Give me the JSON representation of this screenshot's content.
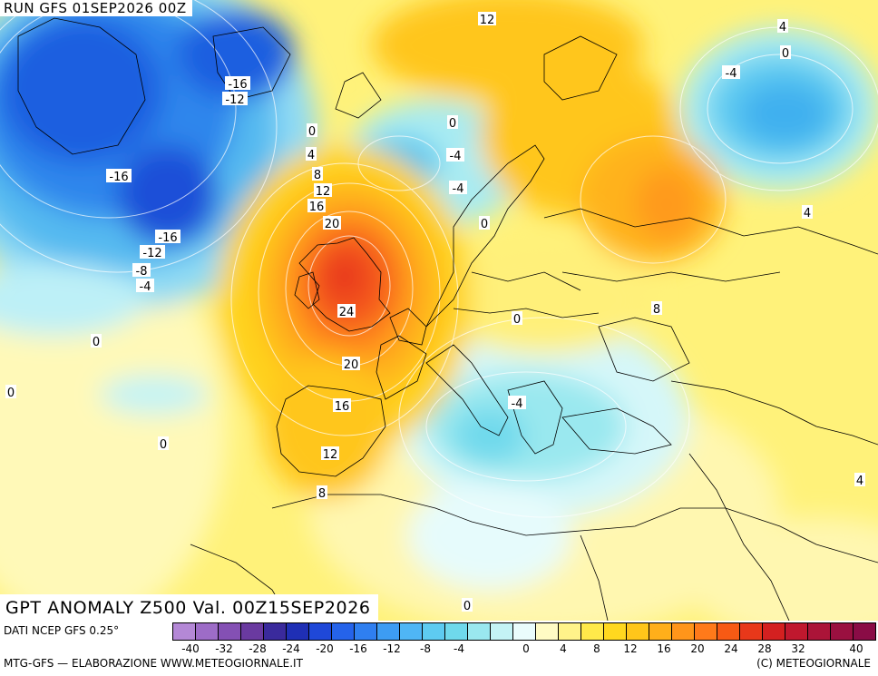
{
  "header": {
    "run": "RUN GFS 01SEP2026 00Z"
  },
  "title": "GPT ANOMALY Z500 Val. 00Z15SEP2026",
  "footer": {
    "source": "DATI NCEP GFS 0.25°",
    "credit_left": "MTG-GFS — ELABORAZIONE WWW.METEOGIORNALE.IT",
    "credit_right": "(C) METEOGIORNALE"
  },
  "legend": {
    "colors": [
      "#b488d6",
      "#9d6cc7",
      "#8450b4",
      "#6a3aa0",
      "#3a2a9c",
      "#1f2fb5",
      "#1f48d8",
      "#2563ea",
      "#2f7ff0",
      "#3d9cf3",
      "#4fb6f5",
      "#5ecbf1",
      "#6fd9ec",
      "#9ae8ef",
      "#c4f3f5",
      "#eafcfc",
      "#fffbc4",
      "#fff38a",
      "#ffe94a",
      "#ffd81f",
      "#ffc61a",
      "#ffaf1a",
      "#ff951a",
      "#ff7a1a",
      "#f75a14",
      "#e8381a",
      "#d42020",
      "#c0182e",
      "#ab1438",
      "#9a1040",
      "#8a0c46"
    ],
    "ticks": [
      "-40",
      "-32",
      "-28",
      "-24",
      "-20",
      "-16",
      "-12",
      "-8",
      "-4",
      "0",
      "4",
      "8",
      "12",
      "16",
      "20",
      "24",
      "28",
      "32",
      "40"
    ]
  },
  "map_labels": [
    {
      "text": "-16"
    },
    {
      "text": "-12"
    },
    {
      "text": "-16"
    },
    {
      "text": "-16"
    },
    {
      "text": "-12"
    },
    {
      "text": "-8"
    },
    {
      "text": "-4"
    },
    {
      "text": "0"
    },
    {
      "text": "0"
    },
    {
      "text": "0"
    },
    {
      "text": "0"
    },
    {
      "text": "4"
    },
    {
      "text": "8"
    },
    {
      "text": "12"
    },
    {
      "text": "16"
    },
    {
      "text": "20"
    },
    {
      "text": "24"
    },
    {
      "text": "20"
    },
    {
      "text": "16"
    },
    {
      "text": "12"
    },
    {
      "text": "8"
    },
    {
      "text": "0"
    },
    {
      "text": "-4"
    },
    {
      "text": "-4"
    },
    {
      "text": "0"
    },
    {
      "text": "12"
    },
    {
      "text": "0"
    },
    {
      "text": "-4"
    },
    {
      "text": "4"
    },
    {
      "text": "0"
    },
    {
      "text": "4"
    },
    {
      "text": "8"
    },
    {
      "text": "-4"
    },
    {
      "text": "4"
    },
    {
      "text": "0"
    }
  ]
}
